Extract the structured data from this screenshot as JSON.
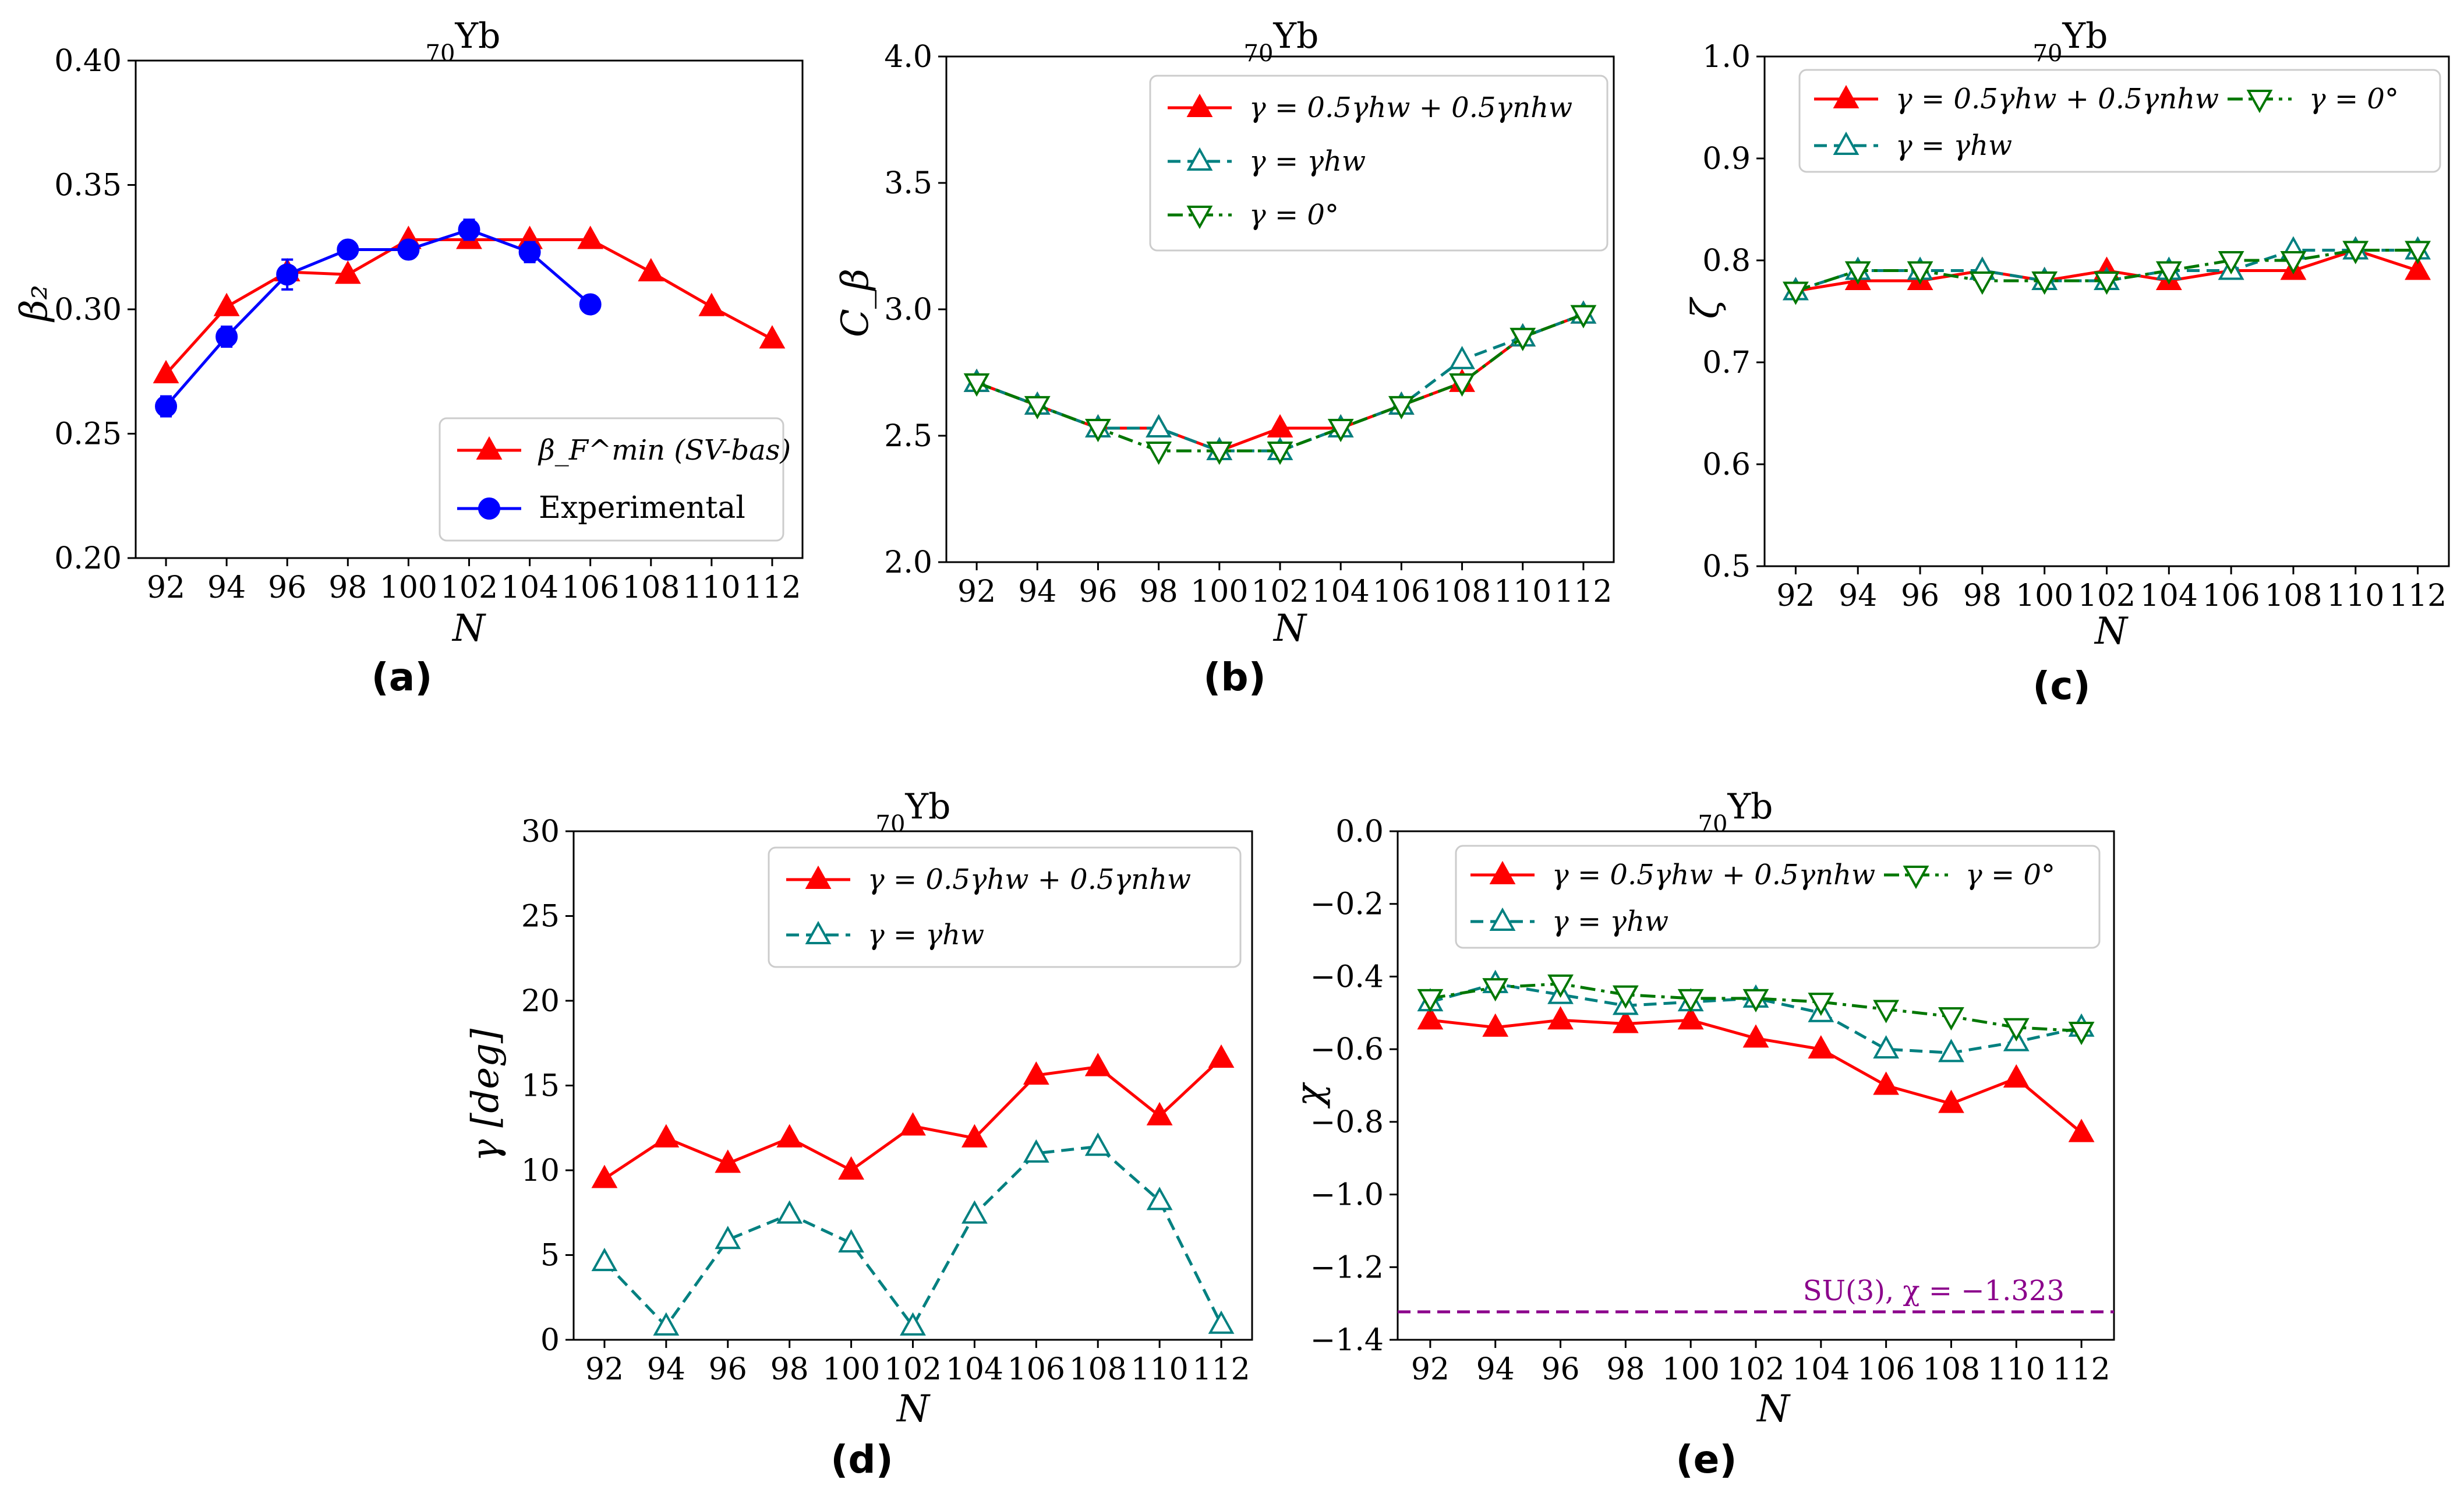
{
  "figure": {
    "panels": [
      {
        "id": "a",
        "label": "(a)",
        "title_sub": "70",
        "title_main": "Yb",
        "xlabel": "N",
        "ylabel": "β₂"
      },
      {
        "id": "b",
        "label": "(b)",
        "title_sub": "70",
        "title_main": "Yb",
        "xlabel": "N",
        "ylabel": "C_β"
      },
      {
        "id": "c",
        "label": "(c)",
        "title_sub": "70",
        "title_main": "Yb",
        "xlabel": "N",
        "ylabel": "ζ"
      },
      {
        "id": "d",
        "label": "(d)",
        "title_sub": "70",
        "title_main": "Yb",
        "xlabel": "N",
        "ylabel": "γ [deg]"
      },
      {
        "id": "e",
        "label": "(e)",
        "title_sub": "70",
        "title_main": "Yb",
        "xlabel": "N",
        "ylabel": "χ"
      }
    ]
  },
  "colors": {
    "red": "#ff0000",
    "blue": "#0000ff",
    "teal": "#008080",
    "green": "#007700",
    "purple": "#8b008b"
  },
  "chart_data": [
    {
      "id": "a",
      "type": "line",
      "title": "70Yb",
      "xlabel": "N",
      "ylabel": "β2",
      "xlim": [
        91,
        113
      ],
      "ylim": [
        0.2,
        0.4
      ],
      "xticks": [
        92,
        94,
        96,
        98,
        100,
        102,
        104,
        106,
        108,
        110,
        112
      ],
      "yticks": [
        0.2,
        0.25,
        0.3,
        0.35,
        0.4
      ],
      "ytick_labels": [
        "0.20",
        "0.25",
        "0.30",
        "0.35",
        "0.40"
      ],
      "legend": "bottom-right",
      "series": [
        {
          "name": "β_F^min (SV-bas)",
          "color": "red",
          "marker": "triangle-up",
          "fill": true,
          "dash": "solid",
          "x": [
            92,
            94,
            96,
            98,
            100,
            102,
            104,
            106,
            108,
            110,
            112
          ],
          "y": [
            0.274,
            0.301,
            0.315,
            0.314,
            0.328,
            0.328,
            0.328,
            0.328,
            0.315,
            0.301,
            0.288
          ]
        },
        {
          "name": "Experimental",
          "color": "blue",
          "marker": "circle",
          "fill": true,
          "dash": "solid",
          "x": [
            92,
            94,
            96,
            98,
            100,
            102,
            104,
            106
          ],
          "y": [
            0.261,
            0.289,
            0.314,
            0.324,
            0.324,
            0.332,
            0.323,
            0.302
          ],
          "yerr": [
            0.004,
            0.004,
            0.006,
            0.0,
            0.002,
            0.004,
            0.004,
            0.0
          ]
        }
      ]
    },
    {
      "id": "b",
      "type": "line",
      "title": "70Yb",
      "xlabel": "N",
      "ylabel": "Cβ",
      "xlim": [
        91,
        113
      ],
      "ylim": [
        2.0,
        4.0
      ],
      "xticks": [
        92,
        94,
        96,
        98,
        100,
        102,
        104,
        106,
        108,
        110,
        112
      ],
      "yticks": [
        2.0,
        2.5,
        3.0,
        3.5,
        4.0
      ],
      "ytick_labels": [
        "2.0",
        "2.5",
        "3.0",
        "3.5",
        "4.0"
      ],
      "legend": "top-right",
      "series": [
        {
          "name": "γ = 0.5γhw + 0.5γnhw",
          "color": "red",
          "marker": "triangle-up",
          "fill": true,
          "dash": "solid",
          "x": [
            92,
            94,
            96,
            98,
            100,
            102,
            104,
            106,
            108,
            110,
            112
          ],
          "y": [
            2.71,
            2.62,
            2.53,
            2.53,
            2.44,
            2.53,
            2.53,
            2.62,
            2.71,
            2.89,
            2.98
          ]
        },
        {
          "name": "γ = γhw",
          "color": "teal",
          "marker": "triangle-up",
          "fill": false,
          "dash": "dashed",
          "x": [
            92,
            94,
            96,
            98,
            100,
            102,
            104,
            106,
            108,
            110,
            112
          ],
          "y": [
            2.71,
            2.62,
            2.53,
            2.53,
            2.44,
            2.44,
            2.53,
            2.62,
            2.8,
            2.89,
            2.98
          ]
        },
        {
          "name": "γ = 0°",
          "color": "green",
          "marker": "triangle-down",
          "fill": false,
          "dash": "dashdot",
          "x": [
            92,
            94,
            96,
            98,
            100,
            102,
            104,
            106,
            108,
            110,
            112
          ],
          "y": [
            2.71,
            2.62,
            2.53,
            2.44,
            2.44,
            2.44,
            2.53,
            2.62,
            2.71,
            2.89,
            2.98
          ]
        }
      ]
    },
    {
      "id": "c",
      "type": "line",
      "title": "70Yb",
      "xlabel": "N",
      "ylabel": "ζ",
      "xlim": [
        91,
        113
      ],
      "ylim": [
        0.5,
        1.0
      ],
      "xticks": [
        92,
        94,
        96,
        98,
        100,
        102,
        104,
        106,
        108,
        110,
        112
      ],
      "yticks": [
        0.5,
        0.6,
        0.7,
        0.8,
        0.9,
        1.0
      ],
      "ytick_labels": [
        "0.5",
        "0.6",
        "0.7",
        "0.8",
        "0.9",
        "1.0"
      ],
      "legend": "top",
      "series": [
        {
          "name": "γ = 0.5γhw + 0.5γnhw",
          "color": "red",
          "marker": "triangle-up",
          "fill": true,
          "dash": "solid",
          "x": [
            92,
            94,
            96,
            98,
            100,
            102,
            104,
            106,
            108,
            110,
            112
          ],
          "y": [
            0.77,
            0.78,
            0.78,
            0.79,
            0.78,
            0.79,
            0.78,
            0.79,
            0.79,
            0.81,
            0.79
          ]
        },
        {
          "name": "γ = γhw",
          "color": "teal",
          "marker": "triangle-up",
          "fill": false,
          "dash": "dashed",
          "x": [
            92,
            94,
            96,
            98,
            100,
            102,
            104,
            106,
            108,
            110,
            112
          ],
          "y": [
            0.77,
            0.79,
            0.79,
            0.79,
            0.78,
            0.78,
            0.79,
            0.79,
            0.81,
            0.81,
            0.81
          ]
        },
        {
          "name": "γ = 0°",
          "color": "green",
          "marker": "triangle-down",
          "fill": false,
          "dash": "dashdot",
          "x": [
            92,
            94,
            96,
            98,
            100,
            102,
            104,
            106,
            108,
            110,
            112
          ],
          "y": [
            0.77,
            0.79,
            0.79,
            0.78,
            0.78,
            0.78,
            0.79,
            0.8,
            0.8,
            0.81,
            0.81
          ]
        }
      ]
    },
    {
      "id": "d",
      "type": "line",
      "title": "70Yb",
      "xlabel": "N",
      "ylabel": "γ [deg]",
      "xlim": [
        91,
        113
      ],
      "ylim": [
        0,
        30
      ],
      "xticks": [
        92,
        94,
        96,
        98,
        100,
        102,
        104,
        106,
        108,
        110,
        112
      ],
      "yticks": [
        0,
        5,
        10,
        15,
        20,
        25,
        30
      ],
      "ytick_labels": [
        "0",
        "5",
        "10",
        "15",
        "20",
        "25",
        "30"
      ],
      "legend": "top-right",
      "series": [
        {
          "name": "γ = 0.5γhw + 0.5γnhw",
          "color": "red",
          "marker": "triangle-up",
          "fill": true,
          "dash": "solid",
          "x": [
            92,
            94,
            96,
            98,
            100,
            102,
            104,
            106,
            108,
            110,
            112
          ],
          "y": [
            9.5,
            11.9,
            10.4,
            11.9,
            10.0,
            12.6,
            11.9,
            15.6,
            16.1,
            13.2,
            16.6
          ]
        },
        {
          "name": "γ = γhw",
          "color": "teal",
          "marker": "triangle-up",
          "fill": false,
          "dash": "dashed",
          "x": [
            92,
            94,
            96,
            98,
            100,
            102,
            104,
            106,
            108,
            110,
            112
          ],
          "y": [
            4.6,
            0.8,
            5.9,
            7.4,
            5.7,
            0.8,
            7.4,
            11.0,
            11.4,
            8.2,
            0.9
          ]
        }
      ]
    },
    {
      "id": "e",
      "type": "line",
      "title": "70Yb",
      "xlabel": "N",
      "ylabel": "χ",
      "xlim": [
        91,
        113
      ],
      "ylim": [
        -1.4,
        0.0
      ],
      "xticks": [
        92,
        94,
        96,
        98,
        100,
        102,
        104,
        106,
        108,
        110,
        112
      ],
      "yticks": [
        0.0,
        -0.2,
        -0.4,
        -0.6,
        -0.8,
        -1.0,
        -1.2,
        -1.4
      ],
      "ytick_labels": [
        "0.0",
        "−0.2",
        "−0.4",
        "−0.6",
        "−0.8",
        "−1.0",
        "−1.2",
        "−1.4"
      ],
      "legend": "top",
      "hline": {
        "y": -1.323,
        "label": "SU(3), χ = −1.323",
        "color": "purple"
      },
      "series": [
        {
          "name": "γ = 0.5γhw + 0.5γnhw",
          "color": "red",
          "marker": "triangle-up",
          "fill": true,
          "dash": "solid",
          "x": [
            92,
            94,
            96,
            98,
            100,
            102,
            104,
            106,
            108,
            110,
            112
          ],
          "y": [
            -0.52,
            -0.54,
            -0.52,
            -0.53,
            -0.52,
            -0.57,
            -0.6,
            -0.7,
            -0.75,
            -0.68,
            -0.83
          ]
        },
        {
          "name": "γ = γhw",
          "color": "teal",
          "marker": "triangle-up",
          "fill": false,
          "dash": "dashed",
          "x": [
            92,
            94,
            96,
            98,
            100,
            102,
            104,
            106,
            108,
            110,
            112
          ],
          "y": [
            -0.47,
            -0.42,
            -0.45,
            -0.48,
            -0.47,
            -0.46,
            -0.5,
            -0.6,
            -0.61,
            -0.58,
            -0.54
          ]
        },
        {
          "name": "γ = 0°",
          "color": "green",
          "marker": "triangle-down",
          "fill": false,
          "dash": "dashdot",
          "x": [
            92,
            94,
            96,
            98,
            100,
            102,
            104,
            106,
            108,
            110,
            112
          ],
          "y": [
            -0.46,
            -0.43,
            -0.42,
            -0.45,
            -0.46,
            -0.46,
            -0.47,
            -0.49,
            -0.51,
            -0.54,
            -0.55
          ]
        }
      ]
    }
  ]
}
